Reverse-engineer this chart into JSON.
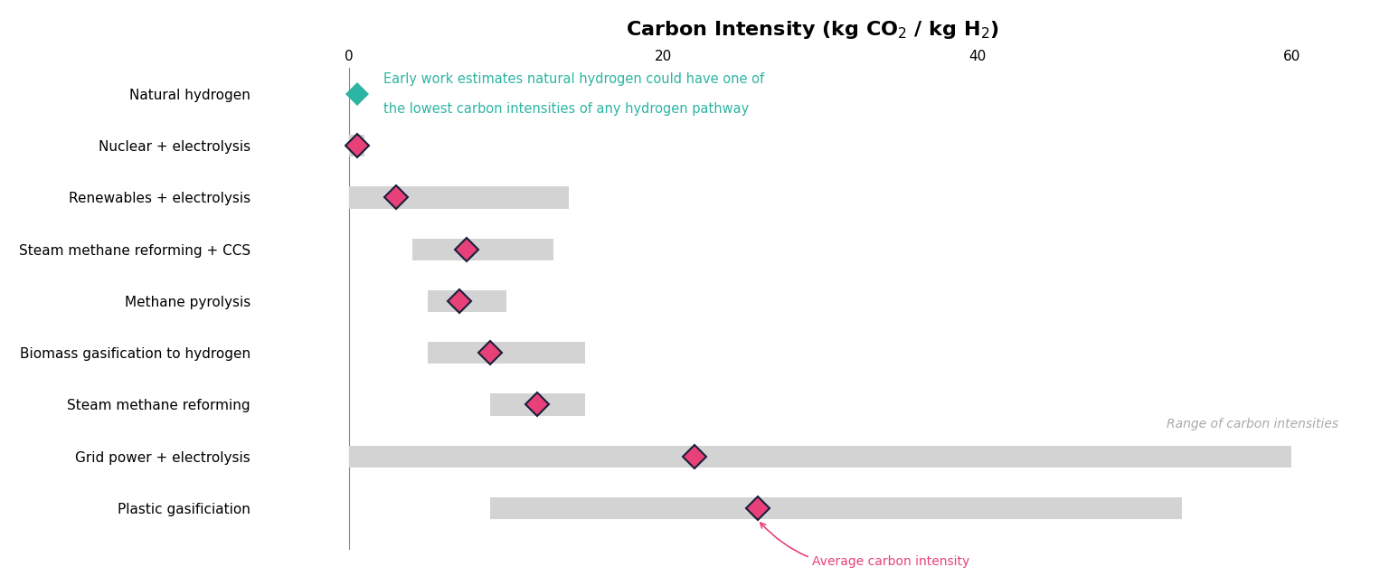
{
  "title": "Carbon Intensity (kg CO$_2$ / kg H$_2$)",
  "categories": [
    "Natural hydrogen",
    "Nuclear + electrolysis",
    "Renewables + electrolysis",
    "Steam methane reforming + CCS",
    "Methane pyrolysis",
    "Biomass gasification to hydrogen",
    "Steam methane reforming",
    "Grid power + electrolysis",
    "Plastic gasificiation"
  ],
  "bar_left": [
    null,
    0,
    0,
    4,
    5,
    5,
    9,
    0,
    9
  ],
  "bar_right": [
    null,
    1,
    14,
    13,
    10,
    15,
    15,
    60,
    53
  ],
  "avg_values": [
    0.5,
    0.5,
    3,
    7.5,
    7,
    9,
    12,
    22,
    26
  ],
  "bar_color": "#d3d3d3",
  "natural_h_marker_color": "#2db5a3",
  "avg_marker_color": "#e8417a",
  "avg_marker_edge_color": "#1a1f3a",
  "annotation_text_color": "#2db5a3",
  "annotation_text_line1": "Early work estimates natural hydrogen could have one of",
  "annotation_text_line2": "the lowest carbon intensities of any hydrogen pathway",
  "range_label": "Range of carbon intensities",
  "range_label_color": "#aaaaaa",
  "avg_label": "Average carbon intensity",
  "avg_label_color": "#e8417a",
  "xlim": [
    -6,
    65
  ],
  "xticks": [
    0,
    20,
    40,
    60
  ],
  "background_color": "#ffffff",
  "label_fontsize": 11,
  "title_fontsize": 16
}
